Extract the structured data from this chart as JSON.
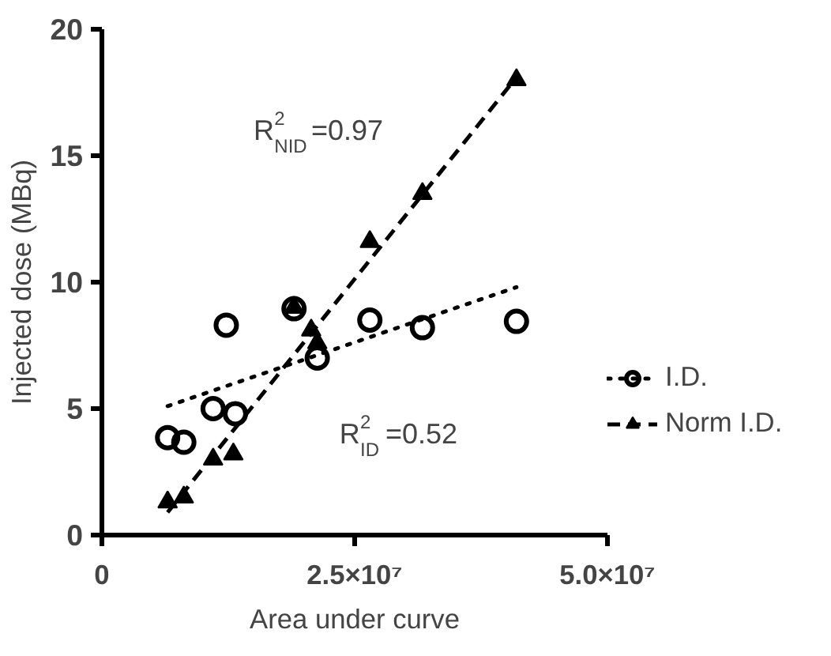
{
  "chart_data": {
    "type": "scatter",
    "xlabel": "Area under curve",
    "ylabel": "Injected dose (MBq)",
    "xlim": [
      0,
      50000000
    ],
    "xticks": [
      0,
      {
        "value": 25000000,
        "label": "2.5×10⁷"
      },
      {
        "value": 50000000,
        "label": "5.0×10⁷"
      }
    ],
    "ylim": [
      0,
      20
    ],
    "yticks": [
      0,
      5,
      10,
      15,
      20
    ],
    "grid": false,
    "legend": "right",
    "annotations": [
      "R$^{2}$$_{NID}$=0.97",
      "R$^{2}$$_{ID}$=0.52"
    ],
    "series": [
      {
        "name": "I.D.",
        "marker": "circle",
        "color": "#000000",
        "x": [
          6500000,
          8100000,
          11000000,
          12300000,
          13200000,
          19000000,
          21300000,
          26500000,
          31700000,
          41000000
        ],
        "values": [
          3.85,
          3.67,
          5.0,
          8.3,
          4.8,
          8.95,
          7.0,
          8.5,
          8.2,
          8.45
        ]
      },
      {
        "name": "Norm I.D.",
        "marker": "triangle",
        "color": "#000000",
        "x": [
          6500000,
          8100000,
          11000000,
          13000000,
          19000000,
          20700000,
          21300000,
          26500000,
          31700000,
          41000000
        ],
        "values": [
          1.3,
          1.5,
          3.0,
          3.2,
          9.0,
          8.1,
          7.6,
          11.6,
          13.5,
          18.0
        ]
      },
      {
        "type": "line",
        "line_style": "dotted",
        "color": "#000000",
        "x": [
          6500000,
          41000000
        ],
        "values": [
          5.1,
          9.8
        ]
      },
      {
        "type": "line",
        "line_style": "dashed",
        "color": "#000000",
        "x": [
          6500000,
          41000000
        ],
        "values": [
          0.9,
          18.1
        ]
      }
    ]
  }
}
